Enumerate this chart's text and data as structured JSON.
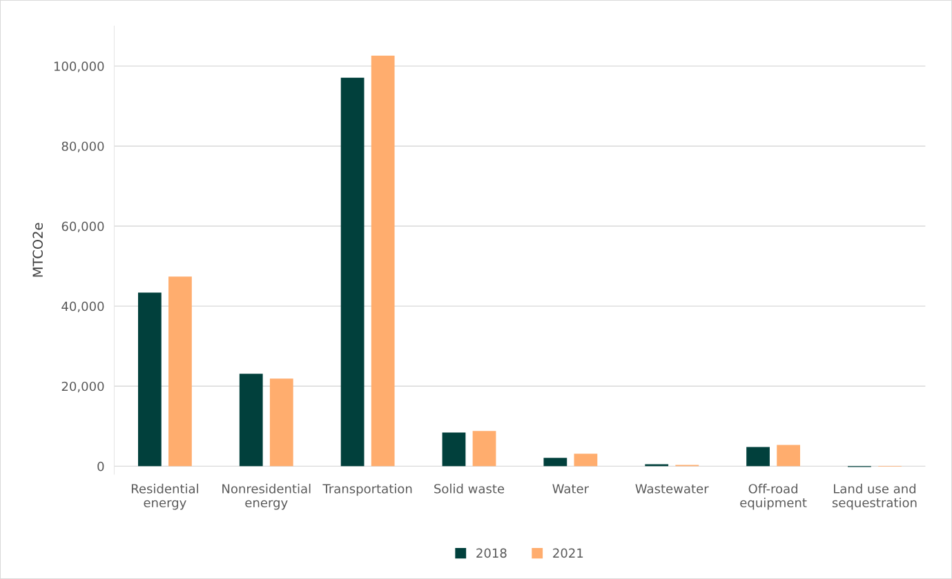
{
  "chart_data": {
    "type": "bar",
    "ylabel": "MTCO2e",
    "categories": [
      "Residential\nenergy",
      "Nonresidential\nenergy",
      "Transportation",
      "Solid waste",
      "Water",
      "Wastewater",
      "Off-road\nequipment",
      "Land use and\nsequestration"
    ],
    "series": [
      {
        "name": "2018",
        "color": "#01403c",
        "values": [
          43400,
          23100,
          97100,
          8400,
          2100,
          500,
          4800,
          -200
        ]
      },
      {
        "name": "2021",
        "color": "#ffad6e",
        "values": [
          47400,
          21900,
          102600,
          8800,
          3100,
          300,
          5300,
          -100
        ]
      }
    ],
    "ylim": [
      -2000,
      110000
    ],
    "yticks": [
      {
        "value": 0,
        "label": "0"
      },
      {
        "value": 20000,
        "label": "20,000"
      },
      {
        "value": 40000,
        "label": "40,000"
      },
      {
        "value": 60000,
        "label": "60,000"
      },
      {
        "value": 80000,
        "label": "80,000"
      },
      {
        "value": 100000,
        "label": "100,000"
      }
    ],
    "grid": "y",
    "legend": "bottom"
  }
}
